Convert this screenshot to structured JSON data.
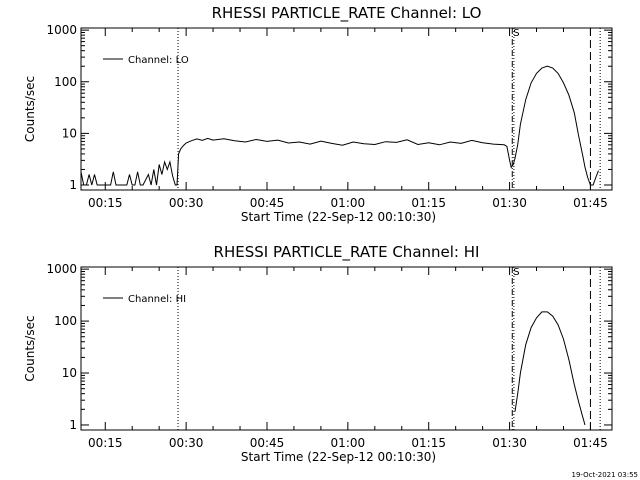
{
  "chart_data": [
    {
      "type": "line",
      "title": "RHESSI PARTICLE_RATE Channel: LO",
      "xlabel": "Start Time (22-Sep-12 00:10:30)",
      "ylabel": "Counts/sec",
      "yscale": "log",
      "xlim_minutes": [
        10.5,
        109
      ],
      "ylim": [
        0.8,
        1100
      ],
      "x_tick_minutes": [
        15,
        30,
        45,
        60,
        75,
        90,
        105
      ],
      "x_tick_labels": [
        "00:15",
        "00:30",
        "00:45",
        "01:00",
        "01:15",
        "01:30",
        "01:45"
      ],
      "y_tick_values": [
        1,
        10,
        100,
        1000
      ],
      "y_tick_labels": [
        "1",
        "10",
        "100",
        "1000"
      ],
      "legend": "Channel: LO",
      "flag_label": "S",
      "marker_lines": [
        {
          "style": "dotted",
          "x_minute": 28.5
        },
        {
          "style": "dashdot",
          "x_minute": 90.5
        },
        {
          "style": "dotted",
          "x_minute": 90.8
        },
        {
          "style": "dashed",
          "x_minute": 105.0
        },
        {
          "style": "dotted",
          "x_minute": 106.8
        }
      ],
      "series": [
        {
          "name": "Channel: LO",
          "x": [
            10.5,
            11.0,
            11.5,
            12.0,
            12.5,
            13.0,
            13.5,
            14.0,
            15.5,
            16.0,
            16.5,
            17.0,
            19.0,
            19.5,
            20.0,
            20.5,
            21.0,
            21.5,
            22.0,
            23.0,
            23.5,
            24.0,
            24.5,
            25.0,
            25.5,
            26.0,
            26.5,
            27.0,
            27.5,
            28.0,
            28.3,
            28.6,
            29.0,
            29.5,
            30.0,
            31.0,
            32.0,
            33.0,
            34.0,
            35.0,
            37.0,
            39.0,
            41.0,
            43.0,
            45.0,
            47.0,
            49.0,
            51.0,
            53.0,
            55.0,
            57.0,
            59.0,
            61.0,
            63.0,
            65.0,
            67.0,
            69.0,
            71.0,
            73.0,
            75.0,
            77.0,
            79.0,
            81.0,
            83.0,
            85.0,
            87.0,
            89.0,
            89.5,
            90.0,
            90.3,
            90.7,
            91.0,
            91.5,
            92.0,
            93.0,
            94.0,
            95.0,
            96.0,
            97.0,
            98.0,
            99.0,
            100.0,
            101.0,
            102.0,
            102.8,
            103.5,
            104.0,
            104.5,
            105.0,
            105.5,
            106.0,
            106.5
          ],
          "values": [
            1.8,
            1.0,
            1.0,
            1.6,
            1.0,
            1.6,
            1.0,
            1.0,
            1.0,
            1.0,
            1.8,
            1.0,
            1.0,
            1.6,
            1.0,
            1.0,
            1.8,
            1.0,
            1.0,
            1.6,
            1.0,
            2.0,
            1.0,
            2.5,
            1.6,
            2.8,
            2.0,
            2.8,
            1.5,
            1.0,
            1.0,
            4.0,
            5.0,
            5.8,
            6.5,
            7.2,
            7.8,
            7.3,
            8.0,
            7.4,
            7.9,
            7.2,
            6.8,
            7.6,
            7.0,
            7.4,
            6.5,
            6.8,
            6.2,
            7.1,
            6.4,
            5.9,
            6.8,
            6.3,
            6.1,
            6.9,
            6.7,
            7.5,
            6.1,
            6.6,
            6.0,
            6.8,
            6.4,
            7.3,
            6.6,
            6.2,
            6.0,
            5.6,
            3.0,
            2.2,
            2.5,
            3.3,
            6.0,
            15.0,
            45.0,
            95.0,
            145.0,
            185.0,
            200.0,
            185.0,
            145.0,
            95.0,
            55.0,
            25.0,
            9.0,
            4.0,
            2.2,
            1.4,
            1.0,
            1.0,
            1.4,
            1.9
          ]
        }
      ]
    },
    {
      "type": "line",
      "title": "RHESSI PARTICLE_RATE Channel: HI",
      "xlabel": "Start Time (22-Sep-12 00:10:30)",
      "ylabel": "Counts/sec",
      "yscale": "log",
      "xlim_minutes": [
        10.5,
        109
      ],
      "ylim": [
        0.8,
        1100
      ],
      "x_tick_minutes": [
        15,
        30,
        45,
        60,
        75,
        90,
        105
      ],
      "x_tick_labels": [
        "00:15",
        "00:30",
        "00:45",
        "01:00",
        "01:15",
        "01:30",
        "01:45"
      ],
      "y_tick_values": [
        1,
        10,
        100,
        1000
      ],
      "y_tick_labels": [
        "1",
        "10",
        "100",
        "1000"
      ],
      "legend": "Channel: HI",
      "flag_label": "S",
      "marker_lines": [
        {
          "style": "dotted",
          "x_minute": 28.5
        },
        {
          "style": "dashdot",
          "x_minute": 90.5
        },
        {
          "style": "dotted",
          "x_minute": 90.8
        },
        {
          "style": "dashed",
          "x_minute": 105.0
        },
        {
          "style": "dotted",
          "x_minute": 106.8
        }
      ],
      "series": [
        {
          "name": "Channel: HI",
          "x": [
            91.0,
            91.5,
            92.0,
            93.0,
            94.0,
            95.0,
            96.0,
            97.0,
            98.0,
            99.0,
            100.0,
            101.0,
            102.0,
            102.8,
            103.5,
            104.0
          ],
          "values": [
            1.8,
            4.0,
            10.0,
            35.0,
            75.0,
            115.0,
            150.0,
            150.0,
            125.0,
            85.0,
            45.0,
            18.0,
            6.0,
            2.8,
            1.5,
            1.0
          ]
        }
      ]
    }
  ],
  "timestamp": "19-Oct-2021 03:55"
}
